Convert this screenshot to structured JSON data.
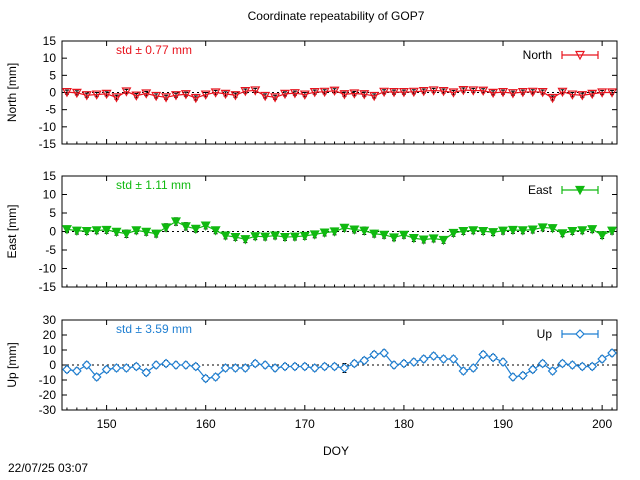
{
  "chart_data": {
    "type": "line",
    "title": "Coordinate repeatability of GOP7",
    "xlabel": "DOY",
    "xlim": [
      145.5,
      201.5
    ],
    "xticks": [
      150,
      160,
      170,
      180,
      190,
      200
    ],
    "timestamp": "22/07/25 03:07",
    "x": [
      146,
      147,
      148,
      149,
      150,
      151,
      152,
      153,
      154,
      155,
      156,
      157,
      158,
      159,
      160,
      161,
      162,
      163,
      164,
      165,
      166,
      167,
      168,
      169,
      170,
      171,
      172,
      173,
      174,
      175,
      176,
      177,
      178,
      179,
      180,
      181,
      182,
      183,
      184,
      185,
      186,
      187,
      188,
      189,
      190,
      191,
      192,
      193,
      194,
      195,
      196,
      197,
      198,
      199,
      200,
      201
    ],
    "panels": [
      {
        "name": "North",
        "ylabel": "North [mm]",
        "ylim": [
          -15,
          15
        ],
        "yticks": [
          -15,
          -10,
          -5,
          0,
          5,
          10,
          15
        ],
        "std_label": "std ± 0.77 mm",
        "legend": "North",
        "color": "#e8141e",
        "marker": "triangle-down-open",
        "values": [
          0.1,
          -0.1,
          -0.8,
          -0.6,
          -0.4,
          -1.4,
          0.3,
          -0.9,
          -0.3,
          -1.0,
          -1.4,
          -0.8,
          -0.5,
          -1.6,
          -0.6,
          0.0,
          -0.4,
          -0.8,
          0.4,
          0.6,
          -1.0,
          -1.4,
          -0.4,
          -0.2,
          -0.6,
          0.1,
          0.2,
          0.5,
          -0.5,
          -0.3,
          -0.5,
          -1.0,
          0.2,
          0.1,
          0.1,
          0.2,
          0.4,
          0.6,
          0.4,
          0.0,
          0.7,
          0.6,
          0.5,
          -0.1,
          0.1,
          -0.2,
          0.1,
          0.2,
          0.1,
          -1.6,
          0.2,
          -0.6,
          -0.8,
          -0.4,
          0.0,
          0.0
        ],
        "errors": [
          0.6,
          0.6,
          0.6,
          0.6,
          0.6,
          0.6,
          0.6,
          0.6,
          0.6,
          0.6,
          0.6,
          0.6,
          0.6,
          0.6,
          0.6,
          0.6,
          0.6,
          0.6,
          0.6,
          0.6,
          0.6,
          0.6,
          0.6,
          0.6,
          0.6,
          0.6,
          0.6,
          0.6,
          0.6,
          0.6,
          0.6,
          0.6,
          0.6,
          0.6,
          0.6,
          0.6,
          0.6,
          0.6,
          0.6,
          0.6,
          0.6,
          0.6,
          0.6,
          0.6,
          0.6,
          0.6,
          0.6,
          0.6,
          0.6,
          0.6,
          0.6,
          0.6,
          0.6,
          0.6,
          0.6,
          0.6
        ]
      },
      {
        "name": "East",
        "ylabel": "East [mm]",
        "ylim": [
          -15,
          15
        ],
        "yticks": [
          -15,
          -10,
          -5,
          0,
          5,
          10,
          15
        ],
        "std_label": "std ± 1.11 mm",
        "legend": "East",
        "color": "#10b910",
        "marker": "triangle-down-filled",
        "values": [
          0.6,
          0.2,
          0.1,
          0.3,
          0.4,
          -0.1,
          -0.6,
          0.3,
          -0.1,
          -0.6,
          1.1,
          2.7,
          1.4,
          0.7,
          1.6,
          0.3,
          -1.1,
          -1.5,
          -2.1,
          -1.3,
          -1.4,
          -1.1,
          -1.5,
          -1.4,
          -1.2,
          -0.8,
          -0.3,
          0.0,
          1.0,
          0.5,
          0.2,
          -0.6,
          -0.9,
          -1.6,
          -0.9,
          -1.8,
          -2.2,
          -1.9,
          -2.3,
          -0.4,
          0.1,
          0.3,
          0.1,
          -0.2,
          0.2,
          0.4,
          0.3,
          0.5,
          1.1,
          0.9,
          -0.5,
          0.1,
          0.3,
          0.6,
          -1.0,
          0.2
        ],
        "errors": [
          0.9,
          0.9,
          0.9,
          0.9,
          0.9,
          0.9,
          1.0,
          0.9,
          0.9,
          0.9,
          1.0,
          1.0,
          1.0,
          0.9,
          0.9,
          0.9,
          0.9,
          0.9,
          0.9,
          0.9,
          0.9,
          0.9,
          0.9,
          0.9,
          0.9,
          0.9,
          0.9,
          0.9,
          0.9,
          0.9,
          1.0,
          0.9,
          0.9,
          0.9,
          0.9,
          0.9,
          0.9,
          0.9,
          0.9,
          0.9,
          0.9,
          0.9,
          0.9,
          0.9,
          0.9,
          0.9,
          0.9,
          0.9,
          0.9,
          0.9,
          0.9,
          0.9,
          0.9,
          0.9,
          0.9,
          0.9
        ]
      },
      {
        "name": "Up",
        "ylabel": "Up [mm]",
        "ylim": [
          -30,
          30
        ],
        "yticks": [
          -30,
          -20,
          -10,
          0,
          10,
          20,
          30
        ],
        "std_label": "std ± 3.59 mm",
        "legend": "Up",
        "color": "#1f7fd2",
        "marker": "diamond",
        "values": [
          -3,
          -4,
          0,
          -8,
          -3,
          -2,
          -2,
          -1,
          -5,
          0,
          1,
          0,
          0,
          -1,
          -9,
          -8,
          -2,
          -2,
          -2,
          1,
          0,
          -2,
          -1,
          -1,
          -1,
          -2,
          -1,
          -1,
          -2,
          1,
          3,
          7,
          8,
          0,
          1,
          2,
          4,
          6,
          4,
          4,
          -4,
          -2,
          7,
          5,
          2,
          -8,
          -7,
          -3,
          1,
          -4,
          1,
          0,
          -1,
          -1,
          4,
          8
        ],
        "errors": [
          2,
          2,
          2,
          2,
          2,
          2,
          2,
          2,
          2,
          2,
          2,
          2,
          2,
          2,
          2,
          2,
          2,
          2,
          2,
          2,
          2,
          2,
          2,
          2,
          2,
          2,
          2,
          2,
          3,
          2,
          2,
          2,
          2,
          2,
          2,
          2,
          2,
          2,
          2,
          2,
          2,
          2,
          2,
          2,
          2,
          2,
          2,
          2,
          2,
          2,
          2,
          2,
          2,
          2,
          2,
          2
        ]
      }
    ]
  }
}
